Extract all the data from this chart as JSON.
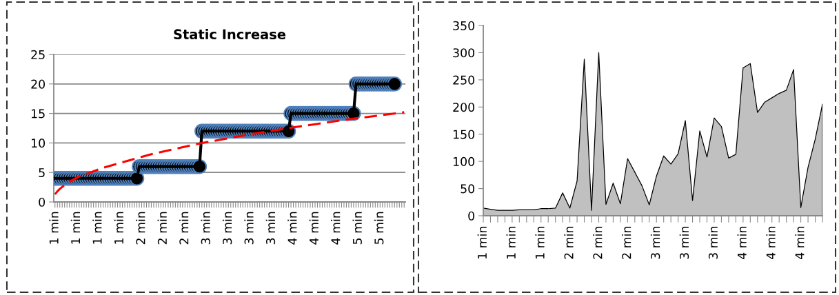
{
  "chart_data": [
    {
      "type": "line",
      "title": "Static Increase",
      "categories": [
        "1 min",
        null,
        null,
        null,
        null,
        null,
        null,
        null,
        null,
        "1 min",
        null,
        null,
        null,
        null,
        null,
        null,
        null,
        null,
        "1 min",
        null,
        null,
        null,
        null,
        null,
        null,
        null,
        null,
        "1 min",
        null,
        null,
        null,
        null,
        null,
        null,
        null,
        null,
        "2 min",
        null,
        null,
        null,
        null,
        null,
        null,
        null,
        null,
        "2 min",
        null,
        null,
        null,
        null,
        null,
        null,
        null,
        null,
        "2 min",
        null,
        null,
        null,
        null,
        null,
        null,
        null,
        null,
        "3 min",
        null,
        null,
        null,
        null,
        null,
        null,
        null,
        null,
        "3 min",
        null,
        null,
        null,
        null,
        null,
        null,
        null,
        null,
        "3 min",
        null,
        null,
        null,
        null,
        null,
        null,
        null,
        null,
        "3 min",
        null,
        null,
        null,
        null,
        null,
        null,
        null,
        null,
        "4 min",
        null,
        null,
        null,
        null,
        null,
        null,
        null,
        null,
        "4 min",
        null,
        null,
        null,
        null,
        null,
        null,
        null,
        null,
        "4 min",
        null,
        null,
        null,
        null,
        null,
        null,
        null,
        null,
        "5 min",
        null,
        null,
        null,
        null,
        null,
        null,
        null,
        null,
        "5 min",
        null,
        null,
        null,
        null,
        null,
        null,
        null,
        null,
        null,
        null
      ],
      "series": [
        {
          "color": "#000000",
          "marker": "circle",
          "line_style": "solid",
          "values": [
            4,
            4,
            4,
            4,
            4,
            4,
            4,
            4,
            4,
            4,
            4,
            4,
            4,
            4,
            4,
            4,
            4,
            4,
            4,
            4,
            4,
            4,
            4,
            4,
            4,
            4,
            4,
            4,
            4,
            4,
            4,
            4,
            4,
            4,
            4,
            6,
            6,
            6,
            6,
            6,
            6,
            6,
            6,
            6,
            6,
            6,
            6,
            6,
            6,
            6,
            6,
            6,
            6,
            6,
            6,
            6,
            6,
            6,
            6,
            6,
            6,
            12,
            12,
            12,
            12,
            12,
            12,
            12,
            12,
            12,
            12,
            12,
            12,
            12,
            12,
            12,
            12,
            12,
            12,
            12,
            12,
            12,
            12,
            12,
            12,
            12,
            12,
            12,
            12,
            12,
            12,
            12,
            12,
            12,
            12,
            12,
            12,
            12,
            15,
            15,
            15,
            15,
            15,
            15,
            15,
            15,
            15,
            15,
            15,
            15,
            15,
            15,
            15,
            15,
            15,
            15,
            15,
            15,
            15,
            15,
            15,
            15,
            15,
            15,
            15,
            20,
            20,
            20,
            20,
            20,
            20,
            20,
            20,
            20,
            20,
            20,
            20,
            20,
            20,
            20,
            20,
            20,
            null,
            null,
            null,
            null
          ]
        },
        {
          "type": "line",
          "color": "#ff0000",
          "marker": "none",
          "line_style": "dashed",
          "values": [
            1.3,
            1.8,
            2.2,
            null,
            null,
            3.2,
            null,
            null,
            null,
            null,
            4.3,
            null,
            null,
            null,
            null,
            null,
            null,
            null,
            null,
            null,
            5.8,
            null,
            null,
            null,
            null,
            null,
            null,
            null,
            null,
            null,
            null,
            null,
            null,
            null,
            null,
            null,
            null,
            null,
            null,
            null,
            8.1,
            null,
            null,
            null,
            null,
            null,
            null,
            null,
            null,
            null,
            null,
            null,
            null,
            null,
            null,
            null,
            null,
            null,
            null,
            null,
            9.9,
            null,
            null,
            null,
            null,
            null,
            null,
            null,
            null,
            null,
            null,
            null,
            null,
            null,
            null,
            null,
            null,
            null,
            null,
            null,
            11.4,
            null,
            null,
            null,
            null,
            null,
            null,
            null,
            null,
            null,
            null,
            null,
            null,
            null,
            null,
            null,
            null,
            null,
            null,
            null,
            12.7,
            null,
            null,
            null,
            null,
            null,
            null,
            null,
            null,
            null,
            null,
            null,
            null,
            null,
            null,
            null,
            null,
            null,
            null,
            null,
            13.9,
            null,
            null,
            null,
            null,
            null,
            null,
            null,
            null,
            null,
            null,
            null,
            null,
            null,
            null,
            null,
            null,
            null,
            null,
            null,
            null,
            null,
            null,
            null,
            null,
            15.2
          ]
        }
      ],
      "ylim": [
        0,
        25
      ],
      "yticks": [
        0,
        5,
        10,
        15,
        20,
        25
      ],
      "grid": "y",
      "legend": false
    },
    {
      "type": "area",
      "categories": [
        "1 min",
        null,
        null,
        null,
        "1 min",
        null,
        null,
        null,
        "1 min",
        null,
        null,
        null,
        "2 min",
        null,
        null,
        null,
        "2 min",
        null,
        null,
        null,
        "2 min",
        null,
        null,
        null,
        "3 min",
        null,
        null,
        null,
        "3 min",
        null,
        null,
        null,
        "3 min",
        null,
        null,
        null,
        "4 min",
        null,
        null,
        null,
        "4 min",
        null,
        null,
        null,
        "4 min",
        null,
        null,
        null
      ],
      "series": [
        {
          "color": "#c0c0c0",
          "values": [
            14,
            12,
            10,
            10,
            10,
            11,
            11,
            11,
            13,
            13,
            14,
            42,
            14,
            64,
            288,
            10,
            300,
            21,
            60,
            22,
            105,
            80,
            55,
            20,
            73,
            110,
            95,
            114,
            175,
            28,
            156,
            108,
            180,
            164,
            106,
            113,
            272,
            280,
            190,
            209,
            217,
            225,
            231,
            269,
            15,
            89,
            141,
            205
          ]
        }
      ],
      "ylim": [
        0,
        350
      ],
      "yticks": [
        0,
        50,
        100,
        150,
        200,
        250,
        300,
        350
      ],
      "grid": false,
      "legend": false
    }
  ]
}
